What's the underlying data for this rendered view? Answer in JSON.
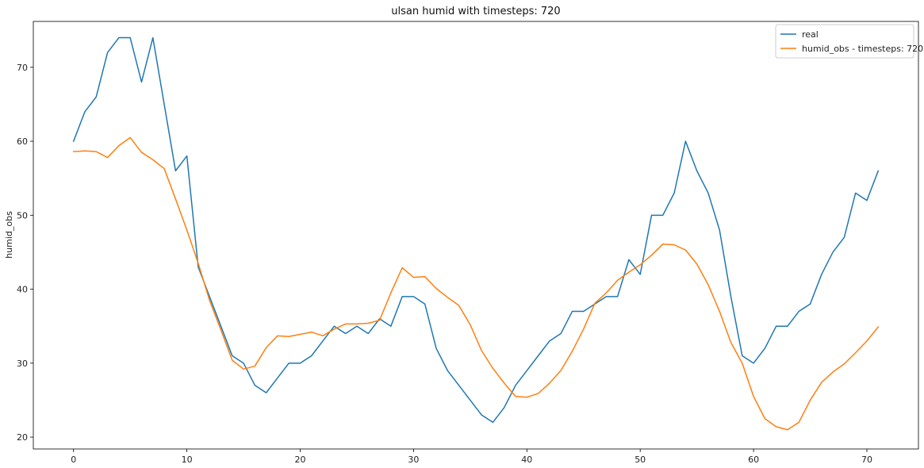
{
  "chart_data": {
    "type": "line",
    "title": "ulsan humid with timesteps: 720",
    "xlabel": "",
    "ylabel": "humid_obs",
    "xlim": [
      -3.55,
      74.55
    ],
    "ylim": [
      18.4,
      76.2
    ],
    "x_ticks": [
      0,
      10,
      20,
      30,
      40,
      50,
      60,
      70
    ],
    "y_ticks": [
      20,
      30,
      40,
      50,
      60,
      70
    ],
    "grid": false,
    "legend_position": "top-right",
    "x": [
      0,
      1,
      2,
      3,
      4,
      5,
      6,
      7,
      8,
      9,
      10,
      11,
      12,
      13,
      14,
      15,
      16,
      17,
      18,
      19,
      20,
      21,
      22,
      23,
      24,
      25,
      26,
      27,
      28,
      29,
      30,
      31,
      32,
      33,
      34,
      35,
      36,
      37,
      38,
      39,
      40,
      41,
      42,
      43,
      44,
      45,
      46,
      47,
      48,
      49,
      50,
      51,
      52,
      53,
      54,
      55,
      56,
      57,
      58,
      59,
      60,
      61,
      62,
      63,
      64,
      65,
      66,
      67,
      68,
      69,
      70,
      71
    ],
    "series": [
      {
        "name": "real",
        "color": "#1f77b4",
        "values": [
          60,
          64,
          66,
          72,
          74,
          74,
          68,
          74,
          65,
          56,
          58,
          43,
          39,
          35,
          31,
          30,
          27,
          26,
          28,
          30,
          30,
          31,
          33,
          35,
          34,
          35,
          34,
          36,
          35,
          39,
          39,
          38,
          32,
          29,
          27,
          25,
          23,
          22,
          24,
          27,
          29,
          31,
          33,
          34,
          37,
          37,
          38,
          39,
          39,
          44,
          42,
          50,
          50,
          53,
          60,
          56,
          53,
          48,
          39,
          31,
          30,
          32,
          35,
          35,
          37,
          38,
          42,
          45,
          47,
          53,
          52,
          56
        ]
      },
      {
        "name": "humid_obs - timesteps: 720",
        "color": "#ff7f0e",
        "values": [
          58.6,
          58.7,
          58.6,
          57.8,
          59.4,
          60.5,
          58.5,
          57.5,
          56.3,
          52.2,
          48.0,
          43.5,
          38.5,
          34.5,
          30.4,
          29.2,
          29.6,
          32.1,
          33.7,
          33.6,
          33.9,
          34.2,
          33.7,
          34.6,
          35.3,
          35.3,
          35.4,
          35.8,
          39.5,
          42.9,
          41.6,
          41.7,
          40.1,
          38.9,
          37.8,
          35.2,
          31.7,
          29.3,
          27.3,
          25.5,
          25.4,
          25.9,
          27.3,
          29.0,
          31.6,
          34.6,
          38.1,
          39.5,
          41.2,
          42.3,
          43.3,
          44.6,
          46.1,
          46.0,
          45.3,
          43.4,
          40.6,
          37.0,
          32.8,
          30.0,
          25.5,
          22.5,
          21.4,
          21.0,
          22.0,
          25.0,
          27.4,
          28.8,
          29.9,
          31.4,
          33.0,
          34.9
        ]
      }
    ]
  }
}
